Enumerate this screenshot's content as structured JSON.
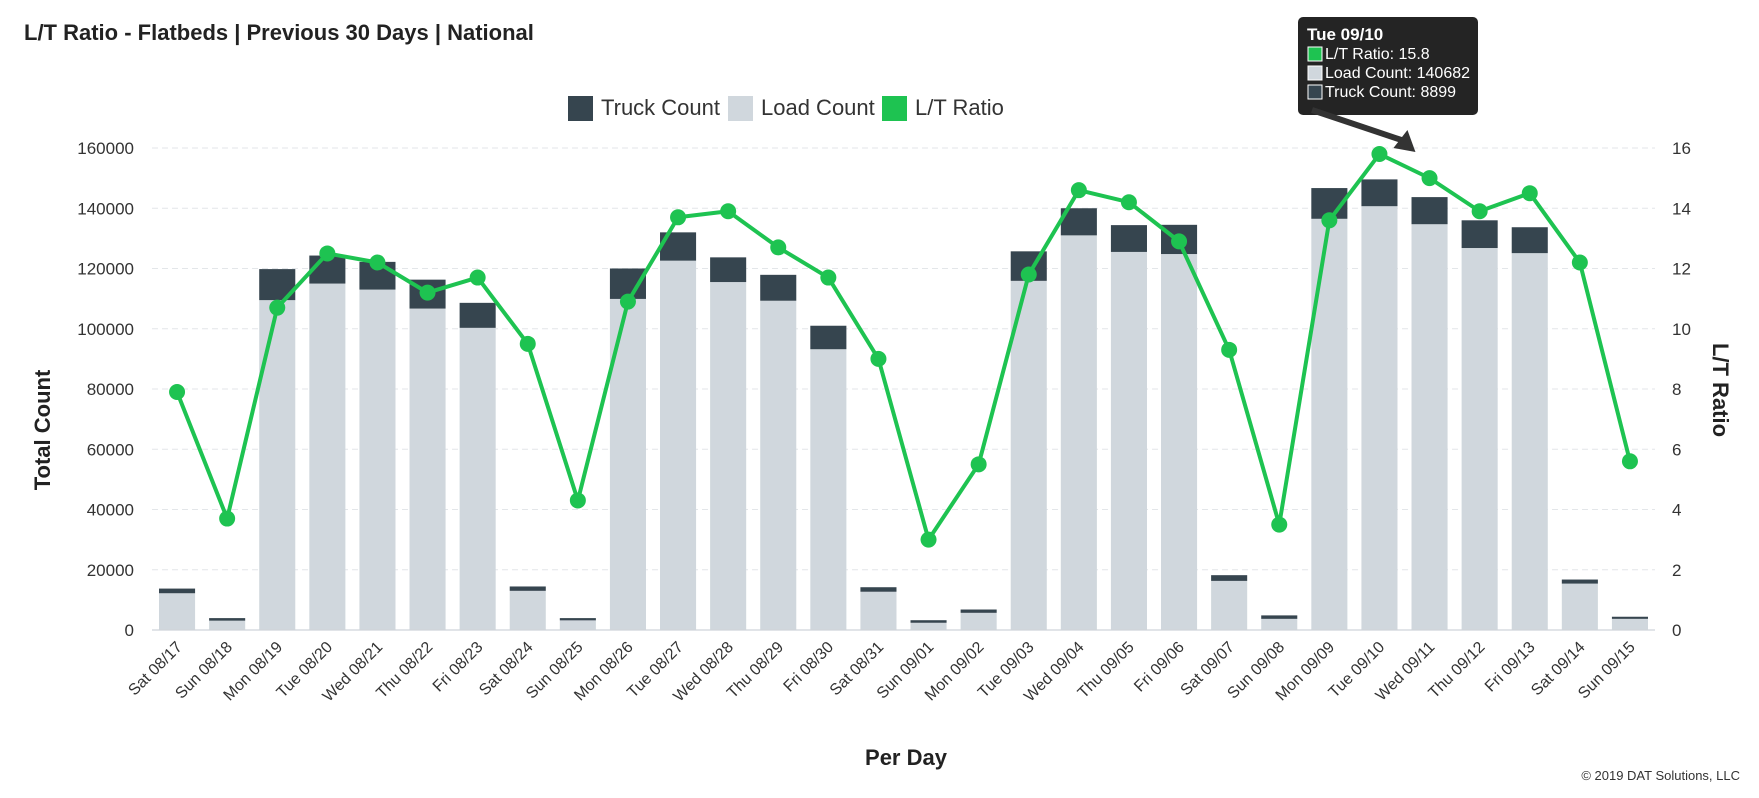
{
  "chart_data": {
    "type": "bar",
    "title": "L/T Ratio - Flatbeds | Previous 30 Days | National",
    "xlabel": "Per Day",
    "ylabel": "Total Count",
    "y2label": "L/T Ratio",
    "ylim": [
      0,
      160000
    ],
    "y2lim": [
      0,
      16
    ],
    "yticks": [
      0,
      20000,
      40000,
      60000,
      80000,
      100000,
      120000,
      140000,
      160000
    ],
    "y2ticks": [
      0,
      2,
      4,
      6,
      8,
      10,
      12,
      14,
      16
    ],
    "grid": true,
    "legend_position": "top-center",
    "categories": [
      "Sat 08/17",
      "Sun 08/18",
      "Mon 08/19",
      "Tue 08/20",
      "Wed 08/21",
      "Thu 08/22",
      "Fri 08/23",
      "Sat 08/24",
      "Sun 08/25",
      "Mon 08/26",
      "Tue 08/27",
      "Wed 08/28",
      "Thu 08/29",
      "Fri 08/30",
      "Sat 08/31",
      "Sun 09/01",
      "Mon 09/02",
      "Tue 09/03",
      "Wed 09/04",
      "Thu 09/05",
      "Fri 09/06",
      "Sat 09/07",
      "Sun 09/08",
      "Mon 09/09",
      "Tue 09/10",
      "Wed 09/11",
      "Thu 09/12",
      "Fri 09/13",
      "Sat 09/14",
      "Sun 09/15"
    ],
    "series": [
      {
        "name": "Truck Count",
        "type": "bar",
        "stacked": true,
        "color": "#36454f",
        "values": [
          1550,
          850,
          10300,
          9300,
          9200,
          9600,
          8300,
          1450,
          750,
          10100,
          9400,
          8200,
          8600,
          7800,
          1500,
          850,
          1100,
          9800,
          9000,
          8900,
          9700,
          1900,
          1150,
          10200,
          8899,
          9000,
          9200,
          8600,
          1350,
          700
        ]
      },
      {
        "name": "Load Count",
        "type": "bar",
        "stacked": true,
        "color": "#d0d7dd",
        "values": [
          12200,
          3100,
          109500,
          115000,
          113000,
          106700,
          100300,
          13000,
          3200,
          109900,
          122600,
          115500,
          109300,
          93200,
          12700,
          2400,
          5700,
          115900,
          131000,
          125500,
          124800,
          16300,
          3700,
          136500,
          140682,
          134700,
          126800,
          125100,
          15400,
          3700
        ]
      },
      {
        "name": "L/T Ratio",
        "type": "line",
        "axis": "right",
        "color": "#1ec351",
        "values": [
          7.9,
          3.7,
          10.7,
          12.5,
          12.2,
          11.2,
          11.7,
          9.5,
          4.3,
          10.9,
          13.7,
          13.9,
          12.7,
          11.7,
          9.0,
          3.0,
          5.5,
          11.8,
          14.6,
          14.2,
          12.9,
          9.3,
          3.5,
          13.6,
          15.8,
          15.0,
          13.9,
          14.5,
          12.2,
          5.6
        ]
      }
    ],
    "tooltip": {
      "title": "Tue 09/10",
      "lines": [
        "L/T Ratio: 15.8",
        "Load Count: 140682",
        "Truck Count: 8899"
      ],
      "colors": [
        "#1ec351",
        "#d0d7dd",
        "#36454f"
      ]
    },
    "credit": "© 2019 DAT Solutions, LLC"
  }
}
